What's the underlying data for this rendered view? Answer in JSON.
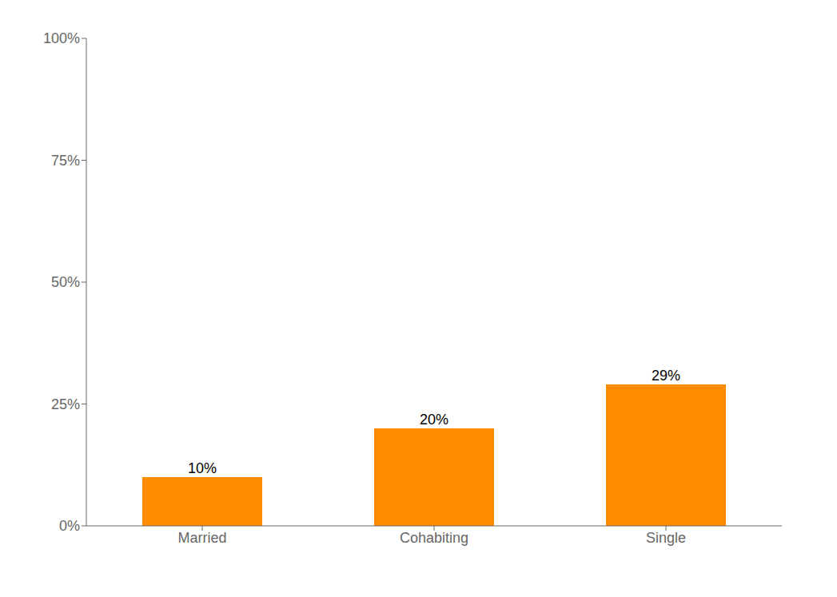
{
  "chart_data": {
    "type": "bar",
    "categories": [
      "Married",
      "Cohabiting",
      "Single"
    ],
    "values": [
      0.1,
      0.2,
      0.29
    ],
    "value_labels": [
      "10%",
      "20%",
      "29%"
    ],
    "data_labels": true,
    "color": "#FF8C00",
    "ylim": [
      0,
      1.0
    ],
    "yticks": [
      {
        "value": 0,
        "label": "0%"
      },
      {
        "value": 0.25,
        "label": "25%"
      },
      {
        "value": 0.5,
        "label": "50%"
      },
      {
        "value": 0.75,
        "label": "75%"
      },
      {
        "value": 1.0,
        "label": "100%"
      }
    ],
    "grid": false
  }
}
